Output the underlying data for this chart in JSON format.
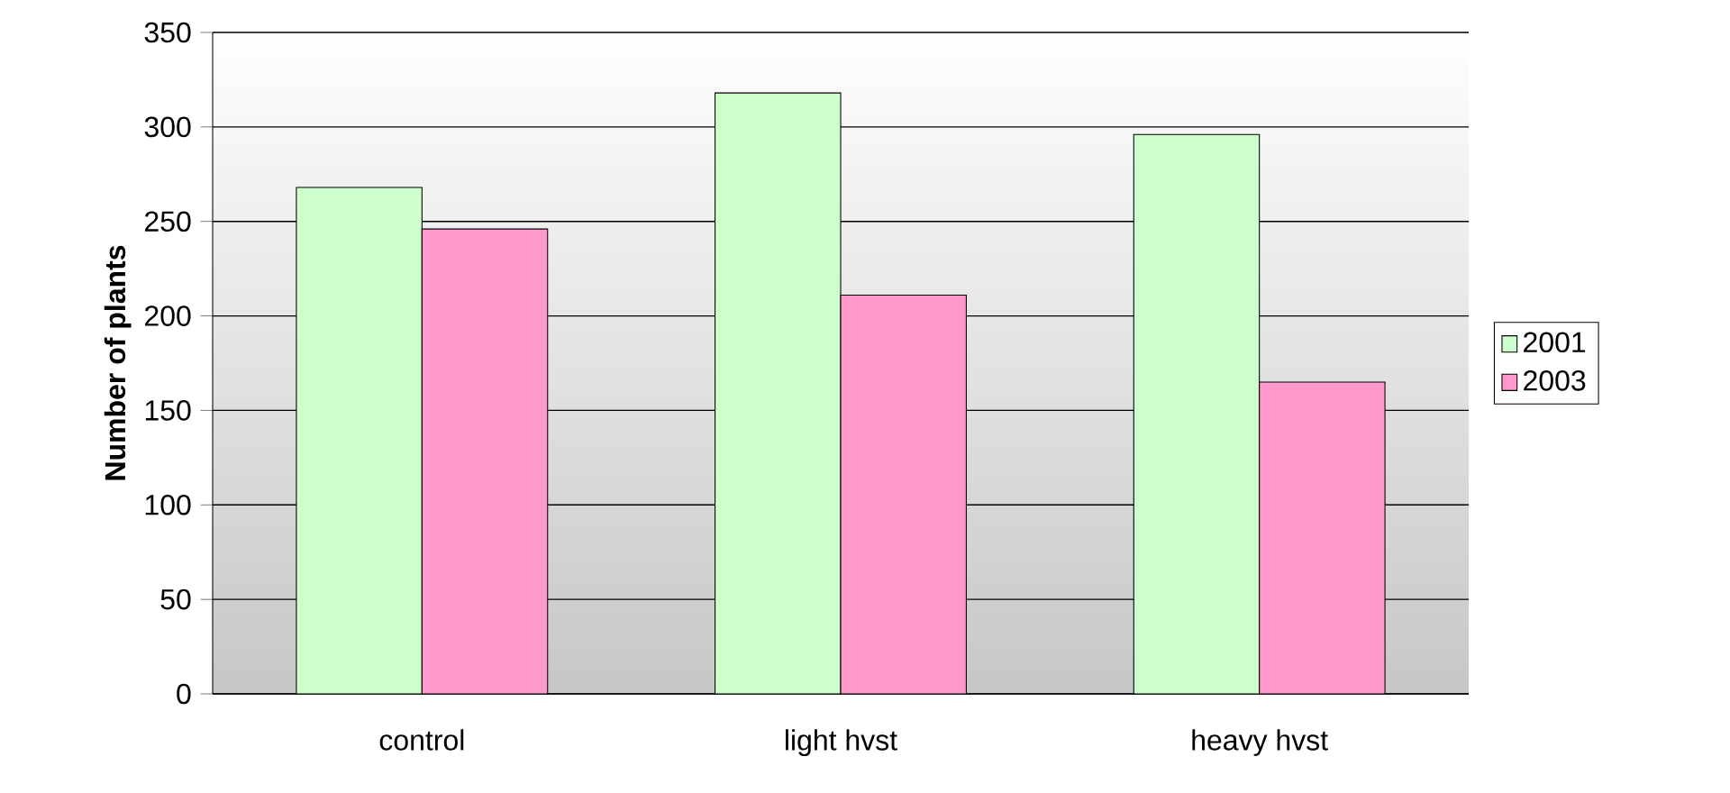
{
  "chart_data": {
    "type": "bar",
    "ylabel": "Number of plants",
    "categories": [
      "control",
      "light hvst",
      "heavy hvst"
    ],
    "series": [
      {
        "name": "2001",
        "color": "#ccffcc",
        "values": [
          268,
          318,
          296
        ]
      },
      {
        "name": "2003",
        "color": "#ff99cc",
        "values": [
          246,
          211,
          165
        ]
      }
    ],
    "ylim": [
      0,
      350
    ],
    "yticks": [
      0,
      50,
      100,
      150,
      200,
      250,
      300,
      350
    ],
    "grid": "y",
    "legend": "right"
  }
}
